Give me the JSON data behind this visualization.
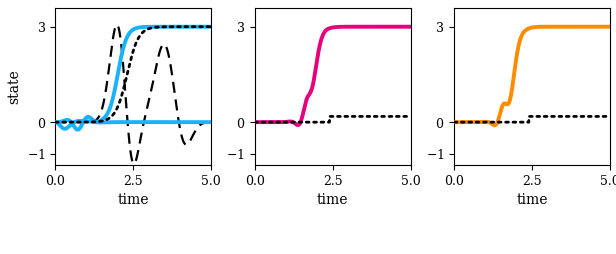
{
  "figsize": [
    6.16,
    2.54
  ],
  "dpi": 100,
  "colors": {
    "cyan": "#1AB2FF",
    "magenta": "#E8007D",
    "orange": "#FF8C00",
    "black": "#000000"
  },
  "xlim": [
    0,
    5
  ],
  "ylim": [
    -1.35,
    3.6
  ],
  "xticks": [
    0,
    2.5,
    5
  ],
  "yticks": [
    -1,
    0,
    3
  ],
  "xlabel": "time",
  "ylabel": "state",
  "lw_colored": 2.8,
  "lw_black": 1.6
}
